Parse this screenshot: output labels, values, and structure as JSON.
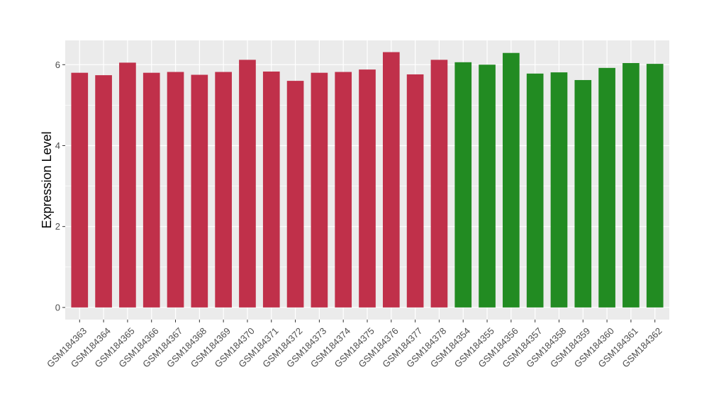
{
  "chart_data": {
    "type": "bar",
    "title": "",
    "xlabel": "",
    "ylabel": "Expression Level",
    "ylim": [
      -0.3,
      6.6
    ],
    "yticks": [
      0,
      2,
      4,
      6
    ],
    "grid": true,
    "legend": "none",
    "categories": [
      "GSM184363",
      "GSM184364",
      "GSM184365",
      "GSM184366",
      "GSM184367",
      "GSM184368",
      "GSM184369",
      "GSM184370",
      "GSM184371",
      "GSM184372",
      "GSM184373",
      "GSM184374",
      "GSM184375",
      "GSM184376",
      "GSM184377",
      "GSM184378",
      "GSM184354",
      "GSM184355",
      "GSM184356",
      "GSM184357",
      "GSM184358",
      "GSM184359",
      "GSM184360",
      "GSM184361",
      "GSM184362"
    ],
    "values": [
      5.8,
      5.74,
      6.05,
      5.8,
      5.82,
      5.75,
      5.82,
      6.12,
      5.83,
      5.6,
      5.8,
      5.82,
      5.88,
      6.31,
      5.76,
      6.12,
      6.06,
      6.0,
      6.29,
      5.78,
      5.81,
      5.62,
      5.92,
      6.04,
      6.02
    ],
    "bar_colors": [
      "#C0304A",
      "#C0304A",
      "#C0304A",
      "#C0304A",
      "#C0304A",
      "#C0304A",
      "#C0304A",
      "#C0304A",
      "#C0304A",
      "#C0304A",
      "#C0304A",
      "#C0304A",
      "#C0304A",
      "#C0304A",
      "#C0304A",
      "#C0304A",
      "#228B22",
      "#228B22",
      "#228B22",
      "#228B22",
      "#228B22",
      "#228B22",
      "#228B22",
      "#228B22",
      "#228B22"
    ],
    "panel_color": "#EBEBEB",
    "gridline_color": "#FFFFFF"
  }
}
